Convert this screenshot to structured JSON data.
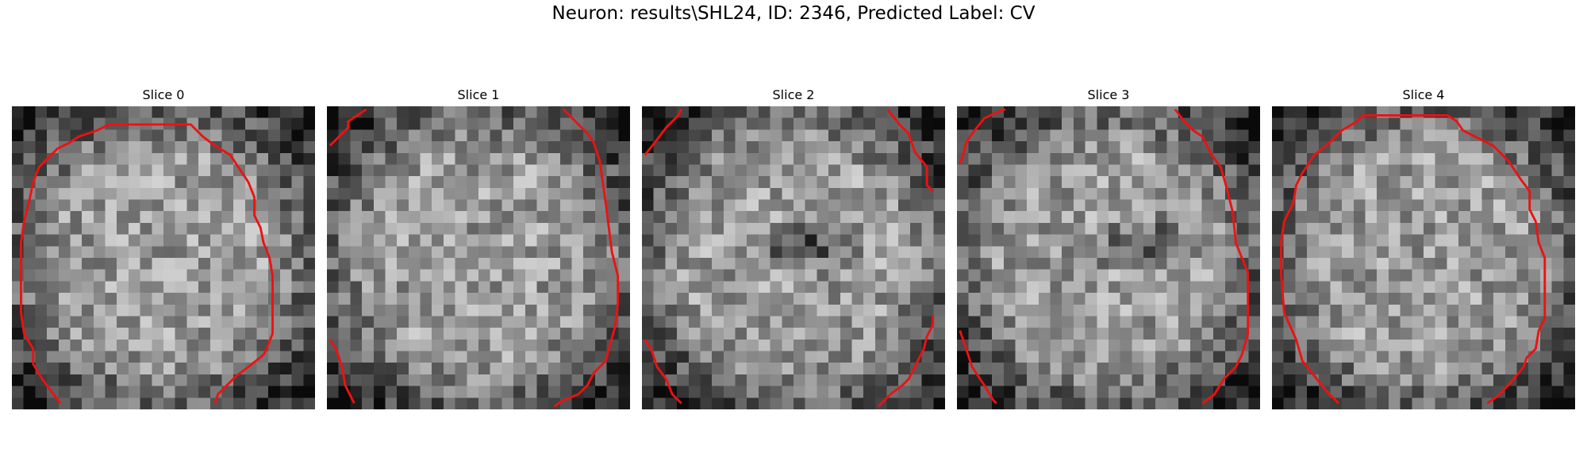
{
  "figure": {
    "title": "Neuron: results\\SHL24, ID: 2346, Predicted Label: CV",
    "contour_color": "#ee1111",
    "slices": [
      {
        "label": "Slice 0",
        "darkness_center": null,
        "contour": [
          [
            0.16,
            0.98
          ],
          [
            0.1,
            0.9
          ],
          [
            0.07,
            0.85
          ],
          [
            0.07,
            0.8
          ],
          [
            0.04,
            0.75
          ],
          [
            0.03,
            0.68
          ],
          [
            0.03,
            0.55
          ],
          [
            0.03,
            0.45
          ],
          [
            0.04,
            0.38
          ],
          [
            0.06,
            0.3
          ],
          [
            0.07,
            0.25
          ],
          [
            0.09,
            0.2
          ],
          [
            0.12,
            0.17
          ],
          [
            0.15,
            0.14
          ],
          [
            0.19,
            0.12
          ],
          [
            0.22,
            0.1
          ],
          [
            0.28,
            0.08
          ],
          [
            0.32,
            0.06
          ],
          [
            0.4,
            0.06
          ],
          [
            0.5,
            0.06
          ],
          [
            0.59,
            0.06
          ],
          [
            0.63,
            0.1
          ],
          [
            0.67,
            0.13
          ],
          [
            0.72,
            0.16
          ],
          [
            0.76,
            0.22
          ],
          [
            0.78,
            0.25
          ],
          [
            0.8,
            0.3
          ],
          [
            0.8,
            0.36
          ],
          [
            0.82,
            0.4
          ],
          [
            0.83,
            0.45
          ],
          [
            0.85,
            0.5
          ],
          [
            0.86,
            0.56
          ],
          [
            0.86,
            0.65
          ],
          [
            0.86,
            0.75
          ],
          [
            0.84,
            0.8
          ],
          [
            0.83,
            0.82
          ],
          [
            0.78,
            0.86
          ],
          [
            0.74,
            0.89
          ],
          [
            0.68,
            0.95
          ],
          [
            0.67,
            0.98
          ]
        ]
      },
      {
        "label": "Slice 1",
        "darkness_center": null,
        "contour": [
          [
            0.01,
            0.13
          ],
          [
            0.04,
            0.1
          ],
          [
            0.07,
            0.07
          ],
          [
            0.07,
            0.05
          ],
          [
            0.1,
            0.03
          ],
          [
            0.13,
            0.01
          ]
        ],
        "contour2": [
          [
            0.78,
            0.01
          ],
          [
            0.82,
            0.05
          ],
          [
            0.86,
            0.09
          ],
          [
            0.88,
            0.12
          ],
          [
            0.9,
            0.18
          ],
          [
            0.91,
            0.25
          ],
          [
            0.92,
            0.32
          ],
          [
            0.93,
            0.4
          ],
          [
            0.94,
            0.48
          ],
          [
            0.96,
            0.56
          ],
          [
            0.96,
            0.65
          ],
          [
            0.95,
            0.73
          ],
          [
            0.93,
            0.8
          ],
          [
            0.92,
            0.84
          ],
          [
            0.88,
            0.88
          ],
          [
            0.86,
            0.92
          ],
          [
            0.83,
            0.95
          ],
          [
            0.78,
            0.97
          ],
          [
            0.75,
            0.99
          ]
        ],
        "contour3": [
          [
            0.01,
            0.77
          ],
          [
            0.03,
            0.8
          ],
          [
            0.05,
            0.86
          ],
          [
            0.06,
            0.92
          ],
          [
            0.08,
            0.96
          ],
          [
            0.09,
            0.98
          ]
        ]
      },
      {
        "label": "Slice 2",
        "darkness_center": [
          0.54,
          0.46
        ],
        "contour": [
          [
            0.01,
            0.16
          ],
          [
            0.05,
            0.11
          ],
          [
            0.08,
            0.07
          ],
          [
            0.12,
            0.03
          ],
          [
            0.13,
            0.01
          ]
        ],
        "contour2": [
          [
            0.81,
            0.01
          ],
          [
            0.85,
            0.06
          ],
          [
            0.88,
            0.09
          ],
          [
            0.9,
            0.15
          ],
          [
            0.94,
            0.2
          ],
          [
            0.94,
            0.26
          ],
          [
            0.96,
            0.28
          ]
        ],
        "contour3": [
          [
            0.01,
            0.77
          ],
          [
            0.03,
            0.8
          ],
          [
            0.05,
            0.86
          ],
          [
            0.08,
            0.9
          ],
          [
            0.1,
            0.95
          ],
          [
            0.13,
            0.98
          ]
        ],
        "contour4": [
          [
            0.78,
            0.99
          ],
          [
            0.82,
            0.95
          ],
          [
            0.86,
            0.92
          ],
          [
            0.88,
            0.9
          ],
          [
            0.9,
            0.86
          ],
          [
            0.93,
            0.8
          ],
          [
            0.94,
            0.76
          ],
          [
            0.96,
            0.72
          ],
          [
            0.96,
            0.69
          ]
        ]
      },
      {
        "label": "Slice 3",
        "darkness_center": [
          0.62,
          0.46
        ],
        "contour": [
          [
            0.01,
            0.19
          ],
          [
            0.02,
            0.16
          ],
          [
            0.03,
            0.12
          ],
          [
            0.05,
            0.09
          ],
          [
            0.09,
            0.04
          ],
          [
            0.13,
            0.02
          ],
          [
            0.16,
            0.01
          ]
        ],
        "contour2": [
          [
            0.72,
            0.01
          ],
          [
            0.75,
            0.05
          ],
          [
            0.78,
            0.08
          ],
          [
            0.81,
            0.1
          ],
          [
            0.84,
            0.16
          ],
          [
            0.87,
            0.2
          ],
          [
            0.89,
            0.27
          ],
          [
            0.91,
            0.35
          ],
          [
            0.92,
            0.45
          ],
          [
            0.96,
            0.55
          ],
          [
            0.96,
            0.65
          ],
          [
            0.96,
            0.75
          ],
          [
            0.94,
            0.82
          ],
          [
            0.92,
            0.86
          ],
          [
            0.88,
            0.9
          ],
          [
            0.85,
            0.95
          ],
          [
            0.81,
            0.98
          ]
        ],
        "contour3": [
          [
            0.01,
            0.74
          ],
          [
            0.03,
            0.8
          ],
          [
            0.05,
            0.86
          ],
          [
            0.09,
            0.92
          ],
          [
            0.12,
            0.97
          ],
          [
            0.13,
            0.98
          ]
        ]
      },
      {
        "label": "Slice 4",
        "darkness_center": null,
        "contour": [
          [
            0.22,
            0.98
          ],
          [
            0.18,
            0.94
          ],
          [
            0.14,
            0.89
          ],
          [
            0.1,
            0.84
          ],
          [
            0.08,
            0.77
          ],
          [
            0.04,
            0.68
          ],
          [
            0.03,
            0.55
          ],
          [
            0.03,
            0.45
          ],
          [
            0.04,
            0.38
          ],
          [
            0.07,
            0.32
          ],
          [
            0.08,
            0.26
          ],
          [
            0.1,
            0.22
          ],
          [
            0.14,
            0.16
          ],
          [
            0.19,
            0.12
          ],
          [
            0.23,
            0.08
          ],
          [
            0.28,
            0.05
          ],
          [
            0.3,
            0.03
          ],
          [
            0.4,
            0.03
          ],
          [
            0.5,
            0.03
          ],
          [
            0.58,
            0.03
          ],
          [
            0.61,
            0.05
          ],
          [
            0.63,
            0.08
          ],
          [
            0.67,
            0.1
          ],
          [
            0.73,
            0.13
          ],
          [
            0.76,
            0.16
          ],
          [
            0.78,
            0.18
          ],
          [
            0.82,
            0.24
          ],
          [
            0.85,
            0.28
          ],
          [
            0.85,
            0.34
          ],
          [
            0.87,
            0.38
          ],
          [
            0.88,
            0.45
          ],
          [
            0.9,
            0.5
          ],
          [
            0.9,
            0.6
          ],
          [
            0.9,
            0.7
          ],
          [
            0.88,
            0.74
          ],
          [
            0.87,
            0.8
          ],
          [
            0.84,
            0.83
          ],
          [
            0.83,
            0.86
          ],
          [
            0.78,
            0.92
          ],
          [
            0.74,
            0.96
          ],
          [
            0.71,
            0.98
          ]
        ]
      }
    ]
  }
}
